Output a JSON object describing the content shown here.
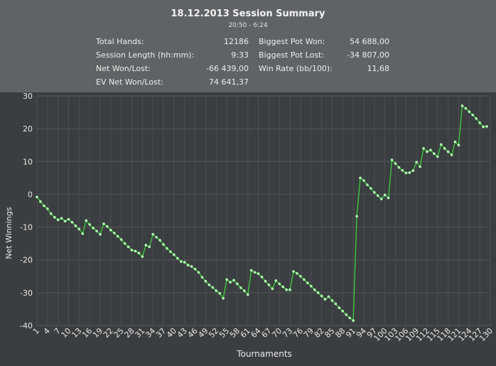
{
  "summary": {
    "title": "18.12.2013 Session Summary",
    "time_range": "20:50 - 6:24",
    "stats_left": [
      {
        "label": "Total Hands:",
        "value": "12186"
      },
      {
        "label": "Session Length (hh:mm):",
        "value": "9:33"
      },
      {
        "label": "Net Won/Lost:",
        "value": "-66 439,00"
      },
      {
        "label": "EV Net Won/Lost:",
        "value": "74 641,37"
      }
    ],
    "stats_right": [
      {
        "label": "Biggest Pot Won:",
        "value": "54 688,00"
      },
      {
        "label": "Biggest Pot Lost:",
        "value": "-34 807,00"
      },
      {
        "label": "Win Rate (bb/100):",
        "value": "11,68"
      }
    ]
  },
  "colors": {
    "header_bg": "#5f6366",
    "plot_bg": "#3b3e40",
    "line": "#3cc63c",
    "marker": "#b4ffb4"
  },
  "chart_data": {
    "type": "line",
    "xlabel": "Tournaments",
    "ylabel": "Net Winnings",
    "xlim": [
      1,
      130
    ],
    "ylim": [
      -40,
      30
    ],
    "y_ticks": [
      30,
      20,
      10,
      0,
      -10,
      -20,
      -30,
      -40
    ],
    "x_ticks": [
      1,
      4,
      7,
      10,
      13,
      16,
      19,
      22,
      25,
      28,
      31,
      34,
      37,
      40,
      43,
      46,
      49,
      52,
      55,
      58,
      61,
      64,
      67,
      70,
      73,
      76,
      79,
      82,
      85,
      88,
      91,
      94,
      97,
      100,
      103,
      106,
      109,
      112,
      115,
      118,
      121,
      124,
      127,
      130
    ],
    "grid": true,
    "series": [
      {
        "values": [
          -0.8,
          -2.2,
          -3.5,
          -4.4,
          -5.9,
          -7.0,
          -7.8,
          -7.3,
          -8.2,
          -7.6,
          -8.5,
          -9.6,
          -10.6,
          -12.0,
          -8.0,
          -9.2,
          -10.3,
          -11.2,
          -12.2,
          -9.0,
          -9.8,
          -10.9,
          -11.8,
          -12.8,
          -13.8,
          -15.0,
          -16.0,
          -17.0,
          -17.3,
          -17.9,
          -19.0,
          -15.5,
          -16.0,
          -12.2,
          -13.1,
          -14.0,
          -15.3,
          -16.5,
          -17.5,
          -18.4,
          -19.5,
          -20.5,
          -20.7,
          -21.6,
          -22.0,
          -22.8,
          -23.8,
          -25.3,
          -26.5,
          -27.6,
          -28.4,
          -29.4,
          -30.2,
          -31.7,
          -26.0,
          -26.8,
          -26.2,
          -27.3,
          -28.5,
          -29.4,
          -30.6,
          -23.2,
          -23.8,
          -24.2,
          -25.2,
          -26.5,
          -27.6,
          -28.8,
          -26.3,
          -27.3,
          -28.2,
          -29.1,
          -29.1,
          -23.5,
          -24.1,
          -25.0,
          -26.0,
          -27.0,
          -28.0,
          -29.1,
          -30.0,
          -31.0,
          -32.0,
          -31.2,
          -32.4,
          -33.4,
          -34.6,
          -35.6,
          -36.7,
          -37.7,
          -38.5,
          -6.7,
          5.0,
          4.2,
          2.9,
          1.8,
          0.6,
          -0.4,
          -1.4,
          -0.2,
          -1.1,
          10.5,
          9.4,
          8.2,
          7.3,
          6.5,
          6.6,
          7.2,
          9.8,
          8.4,
          14.0,
          13.0,
          13.5,
          12.4,
          11.5,
          15.2,
          14.0,
          13.0,
          12.0,
          16.0,
          15.0,
          27.0,
          26.2,
          25.2,
          24.2,
          23.1,
          21.8,
          20.6,
          20.7
        ]
      }
    ]
  }
}
